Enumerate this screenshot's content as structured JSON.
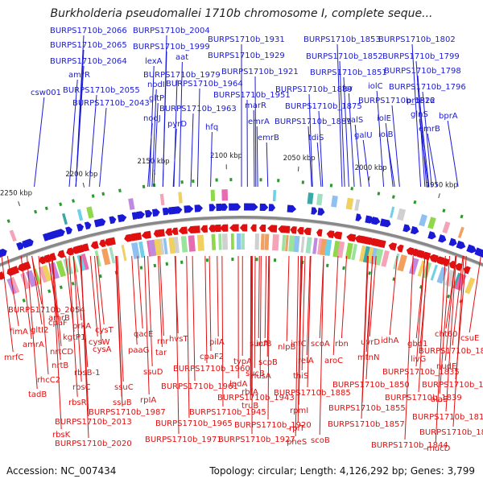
{
  "title": "Burkholderia pseudomallei 1710b chromosome I, complete seque...",
  "accession": "Accession: NC_007434",
  "summary": "Topology: circular; Length: 4,126,292 bp; Genes: 3,799",
  "colors": {
    "forward": "#1a1ad6",
    "reverse": "#e01010",
    "backbone": "#888888"
  },
  "ticks": [
    "2250 kbp",
    "2200 kbp",
    "2150 kbp",
    "2100 kbp",
    "2050 kbp",
    "2000 kbp",
    "1950 kbp"
  ],
  "forward_labels": [
    "BURPS1710b_2066",
    "BURPS1710b_2004",
    "BURPS1710b_1931",
    "BURPS1710b_1853",
    "BURPS1710b_1802",
    "BURPS1710b_2065",
    "BURPS1710b_1999",
    "aat",
    "BURPS1710b_1929",
    "BURPS1710b_1852",
    "BURPS1710b_1799",
    "BURPS1710b_2064",
    "lexA",
    "BURPS1710b_1921",
    "BURPS1710b_1851",
    "BURPS1710b_1798",
    "amrR",
    "BURPS1710b_1979",
    "nodI",
    "BURPS1710b_1964",
    "BURPS1710b_1889",
    "fsr",
    "iolC",
    "BURPS1710b_1796",
    "csw001",
    "BURPS1710b_2055",
    "gltP",
    "BURPS1710b_1951",
    "proP16",
    "BURPS1710b_1822",
    "BURPS1710b_2043",
    "BURPS1710b_1963",
    "marR",
    "BURPS1710b_1875",
    "nodJ",
    "emrA",
    "BURPS1710b_1881",
    "valS",
    "iolE",
    "glnS",
    "bprA",
    "pyrD",
    "hfq",
    "galU",
    "emrB",
    "tdiS",
    "iolB",
    "emrB"
  ],
  "reverse_labels": [
    "BURPS1710b_2054",
    "amrB",
    "cpaF",
    "prkA",
    "cysT",
    "qacE",
    "fimA",
    "gltI2",
    "kgtP1",
    "cysW",
    "paaG",
    "amrA",
    "nrtCD",
    "mrfC",
    "rnr",
    "hvsT",
    "pilA",
    "sucA",
    "infB",
    "nlpB",
    "infC",
    "scoA",
    "rbn",
    "uvrD",
    "idhA",
    "gbd1",
    "cht60",
    "csuE",
    "BURPS1710b_1809",
    "nrtB",
    "rhcC2",
    "cysA",
    "rbsB-1",
    "ssuD",
    "tar",
    "cpaF2",
    "typA",
    "scpB",
    "relA",
    "aroC",
    "mtnN",
    "livG",
    "nudE",
    "BURPS1710b_1835",
    "tadB",
    "rbsC",
    "BURPS1710b_1960",
    "sucB",
    "nusA",
    "thiS",
    "lpdA",
    "BURPS1710b_1850",
    "BURPS1710b_1813",
    "rbsR",
    "ssuC",
    "rpIA",
    "BURPS1710b_1961",
    "rbfA",
    "BURPS1710b_1885",
    "BURPS1710b_1839",
    "ssuB",
    "BURPS1710b_1943",
    "truB",
    "rpmI",
    "BURPS1710b_1855",
    "alaS",
    "BURPS1710b_1987",
    "BURPS1710b_1945",
    "BURPS1710b_1816",
    "BURPS1710b_2013",
    "BURPS1710b_1965",
    "BURPS1710b_1920",
    "rplT",
    "BURPS1710b_1857",
    "BURPS1710b_1818",
    "rbsK",
    "BURPS1710b_1971",
    "BURPS1710b_1927",
    "pheS",
    "scoB",
    "BURPS1710b_1844",
    "mucD",
    "BURPS1710b_2020"
  ]
}
